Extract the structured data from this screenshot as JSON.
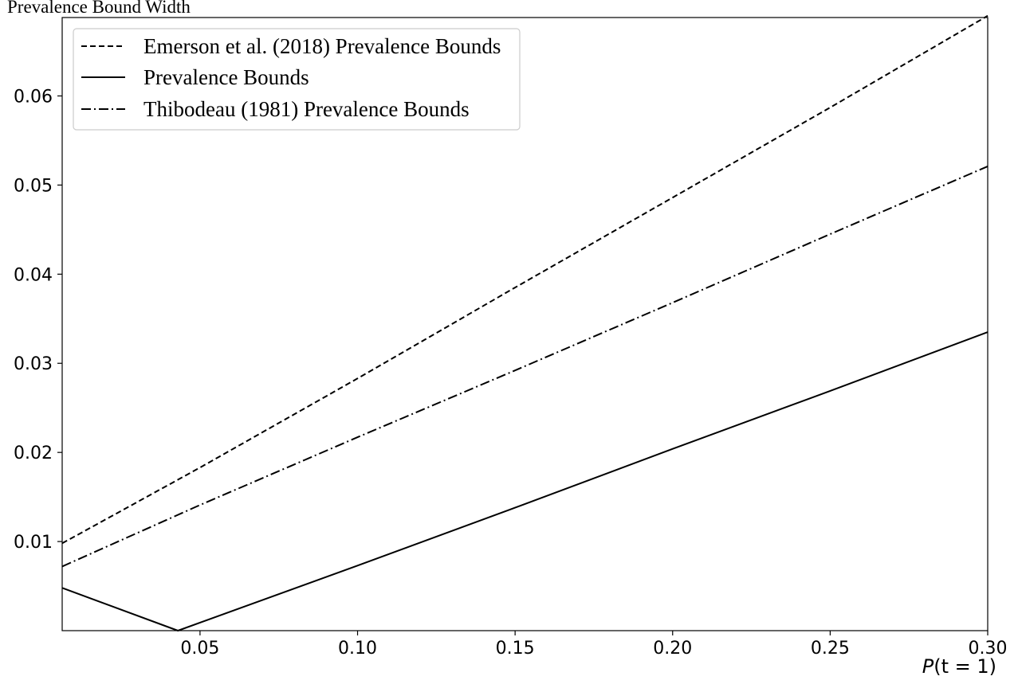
{
  "chart_data": {
    "type": "line",
    "ylabel": "Prevalence Bound Width",
    "xlabel_var": "P",
    "xlabel_arg": "(t = 1)",
    "xlim": [
      0.00625,
      0.3
    ],
    "ylim": [
      0.0,
      0.0688
    ],
    "xticks": [
      0.05,
      0.1,
      0.15,
      0.2,
      0.25,
      0.3
    ],
    "xtick_labels": [
      "0.05",
      "0.10",
      "0.15",
      "0.20",
      "0.25",
      "0.30"
    ],
    "yticks": [
      0.01,
      0.02,
      0.03,
      0.04,
      0.05,
      0.06
    ],
    "ytick_labels": [
      "0.01",
      "0.02",
      "0.03",
      "0.04",
      "0.05",
      "0.06"
    ],
    "grid": false,
    "legend_position": "top-left",
    "series": [
      {
        "name": "Emerson et al. (2018) Prevalence Bounds",
        "style": "dashed",
        "color": "#000000",
        "x": [
          0.00625,
          0.05,
          0.1,
          0.15,
          0.2,
          0.25,
          0.3
        ],
        "y": [
          0.0098,
          0.0183,
          0.0283,
          0.0385,
          0.0486,
          0.0587,
          0.069
        ]
      },
      {
        "name": "Prevalence Bounds",
        "style": "solid",
        "color": "#000000",
        "x": [
          0.00625,
          0.043,
          0.1,
          0.15,
          0.2,
          0.25,
          0.3
        ],
        "y": [
          0.0048,
          0.0,
          0.0073,
          0.0138,
          0.0204,
          0.0269,
          0.0335
        ]
      },
      {
        "name": "Thibodeau (1981) Prevalence Bounds",
        "style": "dashdot",
        "color": "#000000",
        "x": [
          0.00625,
          0.05,
          0.1,
          0.15,
          0.2,
          0.25,
          0.3
        ],
        "y": [
          0.0072,
          0.0141,
          0.0217,
          0.0292,
          0.0368,
          0.0445,
          0.0521
        ]
      }
    ]
  }
}
